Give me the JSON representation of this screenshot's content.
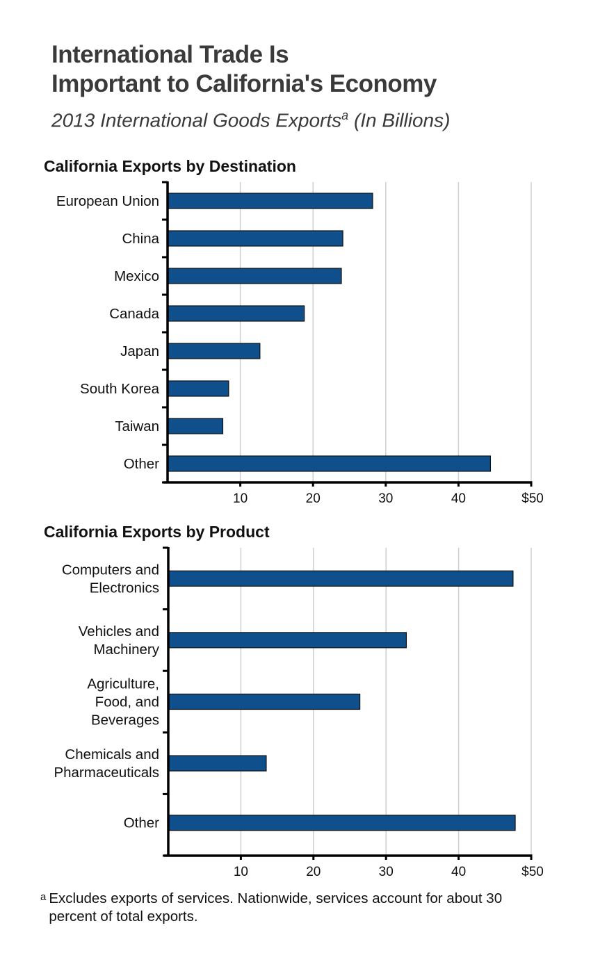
{
  "header": {
    "title_line1": "International Trade Is",
    "title_line2": "Important to California's Economy",
    "subtitle": "2013 International Goods Exports",
    "subtitle_sup": "a",
    "subtitle_units": " (In Billions)"
  },
  "footnote": {
    "marker": "a",
    "text": "Excludes exports of services. Nationwide, services account for about 30 percent of total exports."
  },
  "colors": {
    "bar": "#0f4f8c",
    "bar_border": "#111111",
    "gridline": "#cfcfcf",
    "axis": "#000000"
  },
  "chart_data": [
    {
      "type": "bar",
      "orientation": "horizontal",
      "title": "California Exports by Destination",
      "categories": [
        "European Union",
        "China",
        "Mexico",
        "Canada",
        "Japan",
        "South Korea",
        "Taiwan",
        "Other"
      ],
      "values": [
        28.2,
        24.1,
        23.9,
        18.8,
        12.7,
        8.4,
        7.6,
        44.4
      ],
      "xlabel": "",
      "ylabel": "",
      "xlim": [
        0,
        50
      ],
      "xticks": [
        10,
        20,
        30,
        40,
        50
      ],
      "xtick_labels": [
        "10",
        "20",
        "30",
        "40",
        "$50"
      ],
      "grid": true,
      "units": "billions of dollars"
    },
    {
      "type": "bar",
      "orientation": "horizontal",
      "title": "California Exports by Product",
      "categories": [
        [
          "Computers and",
          "Electronics"
        ],
        [
          "Vehicles and",
          "Machinery"
        ],
        [
          "Agriculture,",
          "Food, and",
          "Beverages"
        ],
        [
          "Chemicals and",
          "Pharmaceuticals"
        ],
        [
          "Other"
        ]
      ],
      "values": [
        47.5,
        32.8,
        26.4,
        13.5,
        47.8
      ],
      "xlabel": "",
      "ylabel": "",
      "xlim": [
        0,
        50
      ],
      "xticks": [
        10,
        20,
        30,
        40,
        50
      ],
      "xtick_labels": [
        "10",
        "20",
        "30",
        "40",
        "$50"
      ],
      "grid": true,
      "units": "billions of dollars"
    }
  ]
}
